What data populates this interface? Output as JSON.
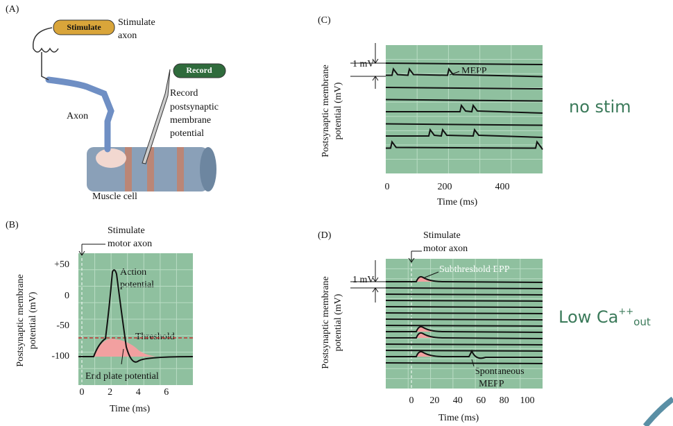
{
  "panel_a": {
    "tag": "(A)",
    "stimulate_button": "Stimulate",
    "stimulate_label": [
      "Stimulate",
      "axon"
    ],
    "record_button": "Record",
    "record_label": [
      "Record",
      "postsynaptic",
      "membrane",
      "potential"
    ],
    "axon_label": "Axon",
    "muscle_label": "Muscle cell"
  },
  "panel_b": {
    "tag": "(B)",
    "stimulate_label": [
      "Stimulate",
      "motor axon"
    ],
    "y_label": [
      "Postsynaptic membrane",
      "potential (mV)"
    ],
    "y_ticks": [
      "+50",
      "0",
      "-50",
      "-100"
    ],
    "x_ticks": [
      "0",
      "2",
      "4",
      "6"
    ],
    "x_label": "Time (ms)",
    "action_potential": [
      "Action",
      "potential"
    ],
    "threshold": "Threshold",
    "end_plate": "End plate potential"
  },
  "panel_c": {
    "tag": "(C)",
    "scale": "1 mV",
    "mepp": "MEPP",
    "y_label": [
      "Postsynaptic membrane",
      "potential (mV)"
    ],
    "x_ticks": [
      "0",
      "200",
      "400"
    ],
    "x_label": "Time (ms)"
  },
  "panel_d": {
    "tag": "(D)",
    "stimulate_label": [
      "Stimulate",
      "motor axon"
    ],
    "scale": "1 mV",
    "subthreshold": "Subthreshold EPP",
    "spontaneous": [
      "Spontaneous",
      "MEPP"
    ],
    "y_label": [
      "Postsynaptic membrane",
      "potential (mV)"
    ],
    "x_ticks": [
      "0",
      "20",
      "40",
      "60",
      "80",
      "100"
    ],
    "x_label": "Time (ms)"
  },
  "side_labels": {
    "no_stim": "no stim",
    "low_ca": {
      "text": "Low Ca",
      "sup": "++",
      "sub": "out"
    }
  }
}
